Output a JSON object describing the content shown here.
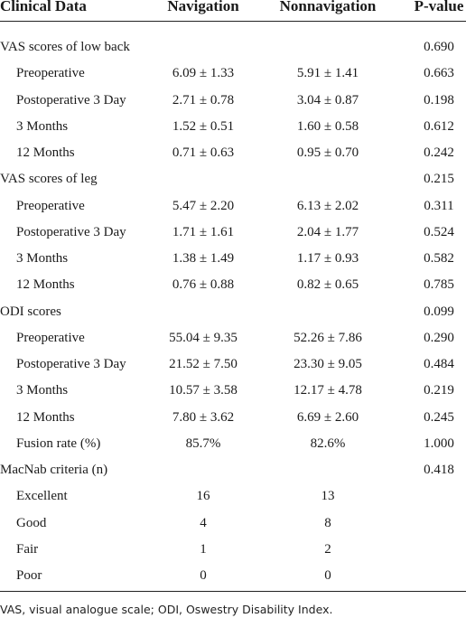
{
  "table": {
    "columns": [
      "Clinical Data",
      "Navigation",
      "Nonnavigation",
      "P-value"
    ],
    "rows": [
      [
        "VAS scores of low back",
        null,
        null,
        "0.690"
      ],
      [
        "Preoperative",
        "6.09 ± 1.33",
        "5.91 ± 1.41",
        "0.663"
      ],
      [
        "Postoperative 3 Day",
        "2.71 ± 0.78",
        "3.04 ± 0.87",
        "0.198"
      ],
      [
        "3 Months",
        "1.52 ± 0.51",
        "1.60 ± 0.58",
        "0.612"
      ],
      [
        "12 Months",
        "0.71 ± 0.63",
        "0.95 ± 0.70",
        "0.242"
      ],
      [
        "VAS scores of leg",
        null,
        null,
        "0.215"
      ],
      [
        "Preoperative",
        "5.47 ± 2.20",
        "6.13 ± 2.02",
        "0.311"
      ],
      [
        "Postoperative 3 Day",
        "1.71 ± 1.61",
        "2.04 ± 1.77",
        "0.524"
      ],
      [
        "3 Months",
        "1.38 ± 1.49",
        "1.17 ± 0.93",
        "0.582"
      ],
      [
        "12 Months",
        "0.76 ± 0.88",
        "0.82 ± 0.65",
        "0.785"
      ],
      [
        "ODI scores",
        null,
        null,
        "0.099"
      ],
      [
        "Preoperative",
        "55.04 ± 9.35",
        "52.26 ± 7.86",
        "0.290"
      ],
      [
        "Postoperative 3 Day",
        "21.52 ± 7.50",
        "23.30 ± 9.05",
        "0.484"
      ],
      [
        "3 Months",
        "10.57 ± 3.58",
        "12.17 ± 4.78",
        "0.219"
      ],
      [
        "12 Months",
        "7.80 ± 3.62",
        "6.69 ± 2.60",
        "0.245"
      ],
      [
        "Fusion rate (%)",
        "85.7%",
        "82.6%",
        "1.000"
      ],
      [
        "MacNab criteria (n)",
        null,
        null,
        "0.418"
      ],
      [
        "Excellent",
        "16",
        "13",
        null
      ],
      [
        "Good",
        "4",
        "8",
        null
      ],
      [
        "Fair",
        "1",
        "2",
        null
      ],
      [
        "Poor",
        "0",
        "0",
        null
      ]
    ],
    "footnote": "VAS, visual analogue scale; ODI, Oswestry Disability Index."
  }
}
